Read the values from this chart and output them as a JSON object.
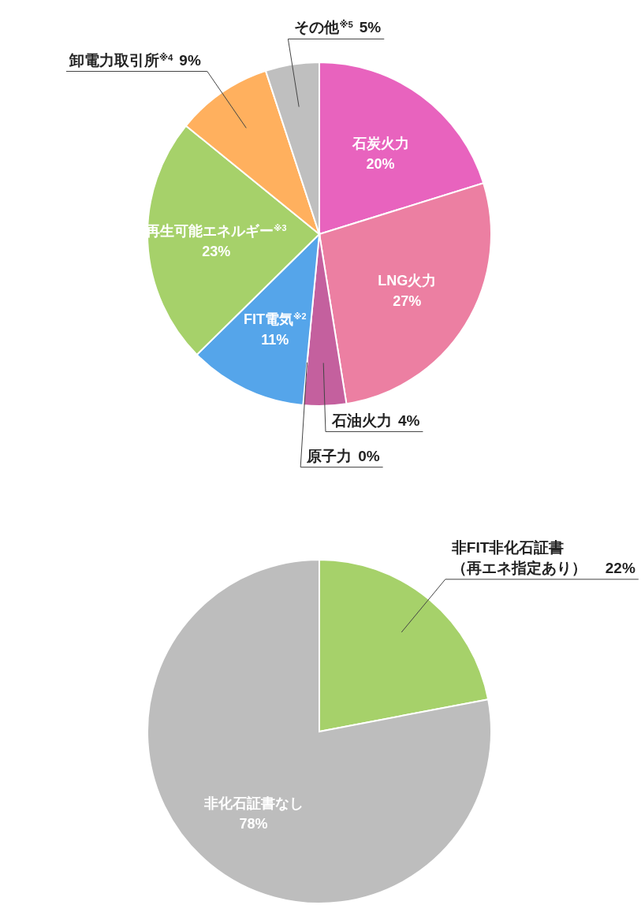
{
  "chart_data": [
    {
      "type": "pie",
      "categories": [
        "石炭火力",
        "LNG火力",
        "石油火力",
        "原子力",
        "FIT電気$^{※2}$",
        "再生可能エネルギー$^{※3}$",
        "卸電力取引所$^{※4}$",
        "その他$^{※5}$"
      ],
      "values": [
        20,
        27,
        4,
        0,
        11,
        23,
        9,
        5
      ],
      "colors": [
        "#e863be",
        "#ec7fa2",
        "#c4609e",
        "#b05090",
        "#55a5ea",
        "#a6d16a",
        "#ffb05e",
        "#bfbfbf"
      ],
      "value_labels": [
        "20%",
        "27%",
        "4%",
        "0%",
        "11%",
        "23%",
        "9%",
        "5%"
      ]
    },
    {
      "type": "pie",
      "categories": [
        "非FIT非化石証書（再エネ指定あり）",
        "非化石証書なし"
      ],
      "values": [
        22,
        78
      ],
      "colors": [
        "#a6d16a",
        "#bdbdbd"
      ],
      "value_labels": [
        "22%",
        "78%"
      ]
    }
  ]
}
